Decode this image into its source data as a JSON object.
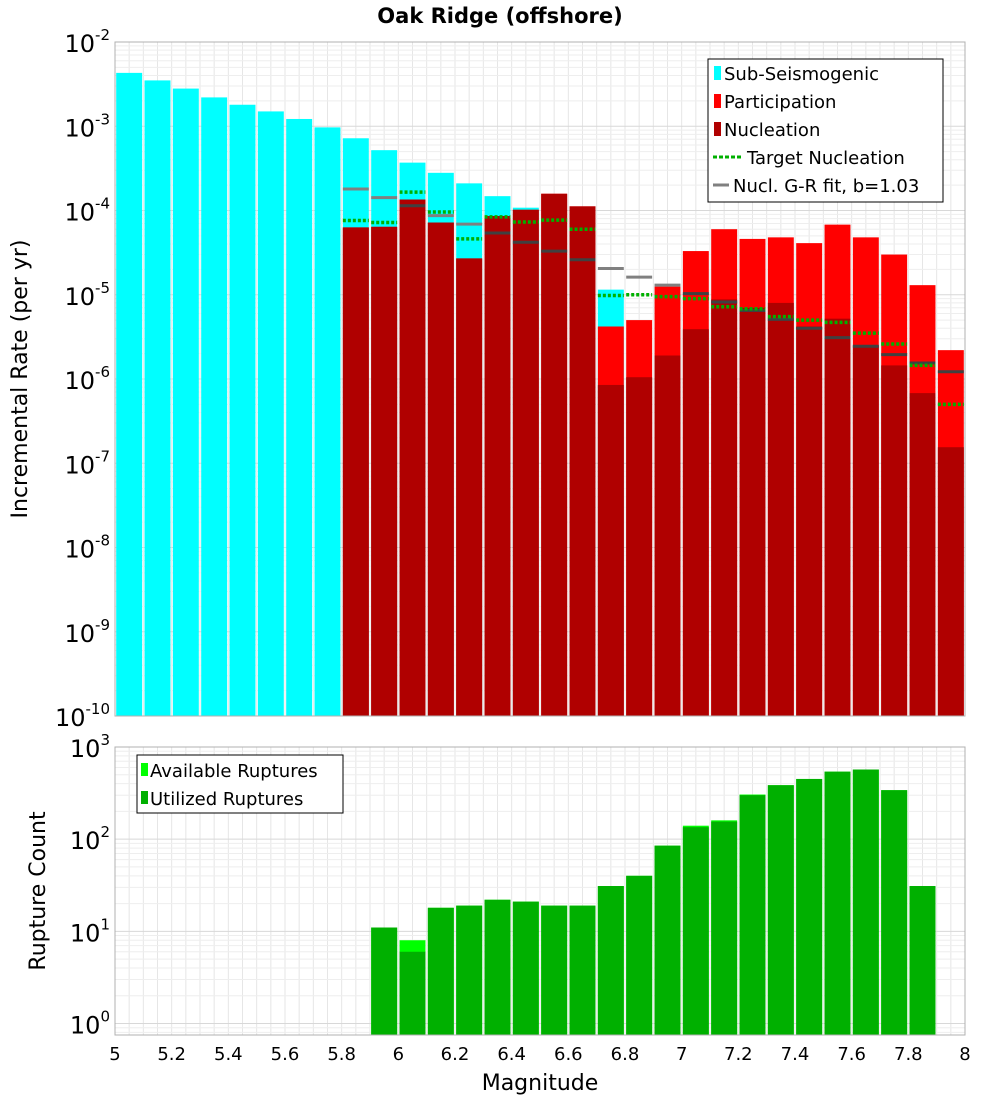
{
  "chart_data": [
    {
      "type": "bar",
      "title": "Oak Ridge (offshore)",
      "ylabel": "Incremental Rate (per yr)",
      "xlabel": "",
      "xlim": [
        5,
        8
      ],
      "ylim": [
        1e-10,
        0.01
      ],
      "yscale": "log",
      "bin_width": 0.1,
      "grid": true,
      "legend_placement": "top-right",
      "y_ticks": [
        {
          "base": "10",
          "exp": "-2",
          "value": 0.01
        },
        {
          "base": "10",
          "exp": "-3",
          "value": 0.001
        },
        {
          "base": "10",
          "exp": "-4",
          "value": 0.0001
        },
        {
          "base": "10",
          "exp": "-5",
          "value": 1e-05
        },
        {
          "base": "10",
          "exp": "-6",
          "value": 1e-06
        },
        {
          "base": "10",
          "exp": "-7",
          "value": 1e-07
        },
        {
          "base": "10",
          "exp": "-8",
          "value": 1e-08
        },
        {
          "base": "10",
          "exp": "-9",
          "value": 1e-09
        },
        {
          "base": "10",
          "exp": "-10",
          "value": 1e-10
        }
      ],
      "series": [
        {
          "name": "Sub-Seismogenic",
          "color": "#00ffff",
          "x": [
            5.05,
            5.15,
            5.25,
            5.35,
            5.45,
            5.55,
            5.65,
            5.75,
            5.85,
            5.95,
            6.05,
            6.15,
            6.25,
            6.35,
            6.45,
            6.75
          ],
          "values": [
            0.0043,
            0.0035,
            0.0028,
            0.0022,
            0.0018,
            0.0015,
            0.00122,
            0.00097,
            0.00072,
            0.00052,
            0.00037,
            0.00028,
            0.00021,
            0.000148,
            0.000108,
            1.15e-05
          ]
        },
        {
          "name": "Participation",
          "color": "#ff0000",
          "x": [
            5.85,
            5.95,
            6.05,
            6.15,
            6.25,
            6.35,
            6.45,
            6.55,
            6.65,
            6.75,
            6.85,
            6.95,
            7.05,
            7.15,
            7.25,
            7.35,
            7.45,
            7.55,
            7.65,
            7.75,
            7.85,
            7.95
          ],
          "values": [
            6.3e-05,
            6.4e-05,
            0.000135,
            7.2e-05,
            2.7e-05,
            8.6e-05,
            0.000102,
            0.000158,
            0.000112,
            4.2e-06,
            5e-06,
            1.25e-05,
            3.3e-05,
            6e-05,
            4.6e-05,
            4.8e-05,
            4.1e-05,
            6.8e-05,
            4.8e-05,
            3e-05,
            1.3e-05,
            2.2e-06
          ]
        },
        {
          "name": "Nucleation",
          "color": "#b00000",
          "x": [
            5.85,
            5.95,
            6.05,
            6.15,
            6.25,
            6.35,
            6.45,
            6.55,
            6.65,
            6.75,
            6.85,
            6.95,
            7.05,
            7.15,
            7.25,
            7.35,
            7.45,
            7.55,
            7.65,
            7.75,
            7.85,
            7.95
          ],
          "values": [
            6.3e-05,
            6.4e-05,
            0.000135,
            7.2e-05,
            2.7e-05,
            8.6e-05,
            0.000102,
            0.000158,
            0.000112,
            8.5e-07,
            1.05e-06,
            1.9e-06,
            3.9e-06,
            8.8e-06,
            7e-06,
            8e-06,
            4.2e-06,
            5.2e-06,
            2.5e-06,
            1.45e-06,
            6.8e-07,
            1.55e-07
          ]
        },
        {
          "name": "Target Nucleation",
          "color": "#00b000",
          "x": [
            5.85,
            5.95,
            6.05,
            6.15,
            6.25,
            6.35,
            6.45,
            6.55,
            6.65,
            6.75,
            6.85,
            6.95,
            7.05,
            7.15,
            7.25,
            7.35,
            7.45,
            7.55,
            7.65,
            7.75,
            7.85,
            7.95
          ],
          "values": [
            7.6e-05,
            7.2e-05,
            0.000165,
            9.6e-05,
            4.6e-05,
            8.4e-05,
            7.3e-05,
            7.7e-05,
            6e-05,
            9.8e-06,
            1e-05,
            9.5e-06,
            9e-06,
            7.2e-06,
            6.8e-06,
            5.5e-06,
            5e-06,
            4.7e-06,
            3.5e-06,
            2.6e-06,
            1.45e-06,
            5e-07
          ]
        },
        {
          "name": "Nucl. G-R fit, b=1.03",
          "color": "#808080",
          "x": [
            5.85,
            5.95,
            6.05,
            6.15,
            6.25,
            6.35,
            6.45,
            6.55,
            6.65,
            6.75,
            6.85,
            6.95,
            7.05,
            7.15,
            7.25,
            7.35,
            7.45,
            7.55,
            7.65,
            7.75,
            7.85,
            7.95
          ],
          "values": [
            0.00018,
            0.000142,
            0.000114,
            8.7e-05,
            6.9e-05,
            5.4e-05,
            4.2e-05,
            3.3e-05,
            2.6e-05,
            2.05e-05,
            1.62e-05,
            1.3e-05,
            1.03e-05,
            8.2e-06,
            6.5e-06,
            5.1e-06,
            4e-06,
            3.1e-06,
            2.45e-06,
            1.95e-06,
            1.55e-06,
            1.22e-06
          ]
        }
      ]
    },
    {
      "type": "bar",
      "title": "",
      "xlabel": "Magnitude",
      "ylabel": "Rupture Count",
      "xlim": [
        5,
        8
      ],
      "ylim": [
        0.75,
        1000
      ],
      "yscale": "log",
      "bin_width": 0.1,
      "grid": true,
      "legend_placement": "top-left",
      "x_ticks": [
        "5",
        "5.2",
        "5.4",
        "5.6",
        "5.8",
        "6",
        "6.2",
        "6.4",
        "6.6",
        "6.8",
        "7",
        "7.2",
        "7.4",
        "7.6",
        "7.8",
        "8"
      ],
      "y_ticks": [
        {
          "base": "10",
          "exp": "3",
          "value": 1000
        },
        {
          "base": "10",
          "exp": "2",
          "value": 100
        },
        {
          "base": "10",
          "exp": "1",
          "value": 10
        },
        {
          "base": "10",
          "exp": "0",
          "value": 1
        }
      ],
      "series": [
        {
          "name": "Available Ruptures",
          "color": "#00ff00",
          "x": [
            5.95,
            6.05,
            6.15,
            6.25,
            6.35,
            6.45,
            6.55,
            6.65,
            6.75,
            6.85,
            6.95,
            7.05,
            7.15,
            7.25,
            7.35,
            7.45,
            7.55,
            7.65,
            7.75,
            7.85
          ],
          "values": [
            11,
            8,
            18,
            19,
            22,
            21,
            19,
            19,
            31,
            40,
            85,
            140,
            160,
            305,
            385,
            450,
            540,
            570,
            340,
            31
          ]
        },
        {
          "name": "Utilized Ruptures",
          "color": "#00b000",
          "x": [
            5.95,
            6.05,
            6.15,
            6.25,
            6.35,
            6.45,
            6.55,
            6.65,
            6.75,
            6.85,
            6.95,
            7.05,
            7.15,
            7.25,
            7.35,
            7.45,
            7.55,
            7.65,
            7.75,
            7.85
          ],
          "values": [
            11,
            6,
            18,
            19,
            22,
            21,
            19,
            19,
            31,
            40,
            85,
            135,
            155,
            300,
            385,
            450,
            540,
            570,
            340,
            31
          ]
        }
      ]
    }
  ]
}
